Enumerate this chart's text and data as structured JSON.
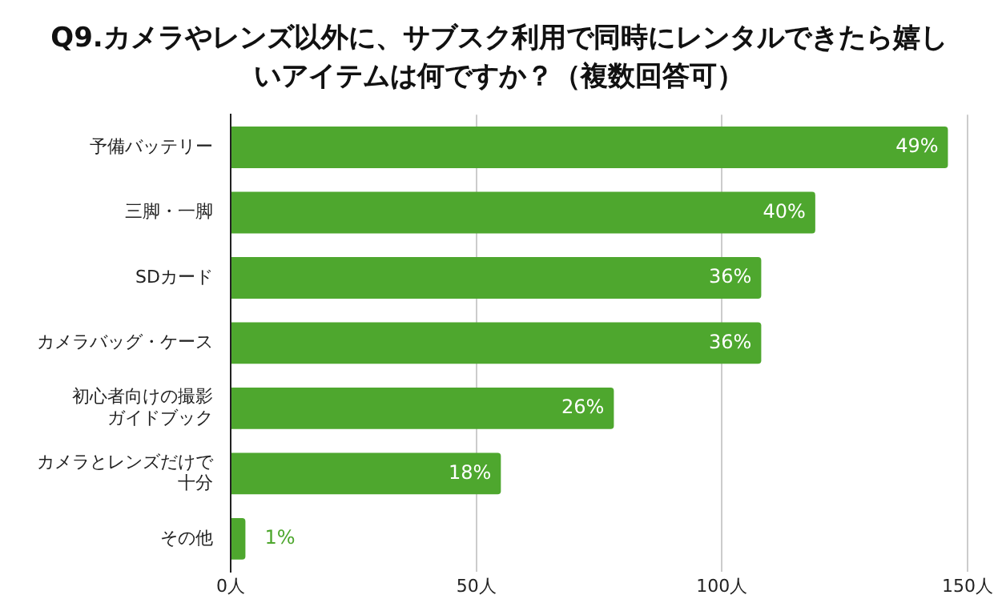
{
  "chart_data": {
    "type": "bar",
    "orientation": "horizontal",
    "title": "Q9.カメラやレンズ以外に、サブスク利用で同時にレンタルできたら嬉しいアイテムは何ですか？（複数回答可）",
    "categories": [
      "予備バッテリー",
      "三脚・一脚",
      "SDカード",
      "カメラバッグ・ケース",
      "初心者向けの撮影ガイドブック",
      "カメラとレンズだけで十分",
      "その他"
    ],
    "values": [
      146,
      119,
      108,
      108,
      78,
      55,
      3
    ],
    "annotations": [
      {
        "text": "49%",
        "x": 146,
        "y": "予備バッテリー"
      },
      {
        "text": "40%",
        "x": 119,
        "y": "三脚・一脚"
      },
      {
        "text": "36%",
        "x": 108,
        "y": "SDカード"
      },
      {
        "text": "36%",
        "x": 108,
        "y": "カメラバッグ・ケース"
      },
      {
        "text": "26%",
        "x": 78,
        "y": "初心者向けの撮影ガイドブック"
      },
      {
        "text": "18%",
        "x": 55,
        "y": "カメラとレンズだけで十分"
      },
      {
        "text": "1%",
        "x": 3,
        "y": "その他"
      }
    ],
    "color": "#4ea72e",
    "xlim": [
      0,
      150
    ],
    "xticks": [
      {
        "value": 0,
        "label": "0人"
      },
      {
        "value": 50,
        "label": "50人"
      },
      {
        "value": 100,
        "label": "100人"
      },
      {
        "value": 150,
        "label": "150人"
      }
    ],
    "grid": "x",
    "legend": false
  }
}
